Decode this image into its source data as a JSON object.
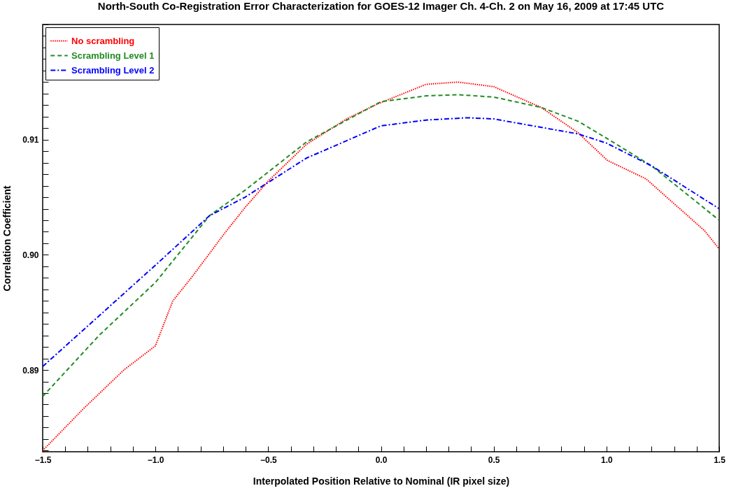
{
  "chart_data": {
    "type": "line",
    "title": "North-South Co-Registration Error Characterization for GOES-12 Imager Ch. 4-Ch. 2 on May 16, 2009 at 17:45 UTC",
    "xlabel": "Interpolated Position Relative to Nominal (IR pixel size)",
    "ylabel": "Correlation Coefficient",
    "series": [
      {
        "name": "No scrambling",
        "color": "#ff0000",
        "line_style": "dotted",
        "x": [
          -1.5,
          -1.316,
          -1.14,
          -1.0,
          -0.923,
          -0.841,
          -0.696,
          -0.603,
          -0.5,
          -0.33,
          -0.152,
          -0.015,
          0.2,
          0.341,
          0.5,
          0.71,
          0.874,
          1.004,
          1.175,
          1.435,
          1.5
        ],
        "values": [
          0.883,
          0.8867,
          0.89,
          0.8921,
          0.896,
          0.898,
          0.9018,
          0.9041,
          0.9064,
          0.9096,
          0.9118,
          0.9131,
          0.9148,
          0.915,
          0.9146,
          0.9128,
          0.9106,
          0.9082,
          0.9066,
          0.9021,
          0.9005
        ]
      },
      {
        "name": "Scrambling Level 1",
        "color": "#228b22",
        "line_style": "dashed",
        "x": [
          -1.5,
          -1.25,
          -1.0,
          -0.76,
          -0.603,
          -0.33,
          0.0,
          0.2,
          0.341,
          0.5,
          0.71,
          0.874,
          1.011,
          1.202,
          1.5
        ],
        "values": [
          0.8877,
          0.893,
          0.8976,
          0.9034,
          0.9056,
          0.9098,
          0.9133,
          0.9138,
          0.9139,
          0.9137,
          0.9128,
          0.9116,
          0.91,
          0.9077,
          0.903
        ]
      },
      {
        "name": "Scrambling Level 2",
        "color": "#0000ff",
        "line_style": "dashdot",
        "x": [
          -1.5,
          -1.25,
          -1.0,
          -0.76,
          -0.603,
          -0.33,
          0.0,
          0.2,
          0.382,
          0.5,
          0.874,
          1.0,
          1.202,
          1.5
        ],
        "values": [
          0.8903,
          0.8947,
          0.8991,
          0.9034,
          0.905,
          0.9084,
          0.9112,
          0.9117,
          0.9119,
          0.9118,
          0.9105,
          0.9097,
          0.9077,
          0.904
        ]
      }
    ],
    "xlim": [
      -1.5,
      1.5
    ],
    "xticks": [
      {
        "value": -1.5,
        "label": "−1.5"
      },
      {
        "value": -1.4,
        "label": null
      },
      {
        "value": -1.3,
        "label": null
      },
      {
        "value": -1.2,
        "label": null
      },
      {
        "value": -1.1,
        "label": null
      },
      {
        "value": -1.0,
        "label": "−1.0"
      },
      {
        "value": -0.9,
        "label": null
      },
      {
        "value": -0.8,
        "label": null
      },
      {
        "value": -0.7,
        "label": null
      },
      {
        "value": -0.6,
        "label": null
      },
      {
        "value": -0.5,
        "label": "−0.5"
      },
      {
        "value": -0.4,
        "label": null
      },
      {
        "value": -0.3,
        "label": null
      },
      {
        "value": -0.2,
        "label": null
      },
      {
        "value": -0.1,
        "label": null
      },
      {
        "value": 0,
        "label": "0.0"
      },
      {
        "value": 0.1,
        "label": null
      },
      {
        "value": 0.2,
        "label": null
      },
      {
        "value": 0.3,
        "label": null
      },
      {
        "value": 0.4,
        "label": null
      },
      0.5,
      {
        "value": 0.6,
        "label": null
      },
      {
        "value": 0.7,
        "label": null
      },
      {
        "value": 0.8,
        "label": null
      },
      {
        "value": 0.9,
        "label": null
      },
      {
        "value": 1.0,
        "label": "1.0"
      },
      {
        "value": 1.1,
        "label": null
      },
      {
        "value": 1.2,
        "label": null
      },
      {
        "value": 1.3,
        "label": null
      },
      {
        "value": 1.4,
        "label": null
      },
      1.5
    ],
    "ylim": [
      0.8829,
      0.92
    ],
    "yticks": [
      {
        "value": 0.883,
        "label": null
      },
      {
        "value": 0.884,
        "label": null
      },
      {
        "value": 0.885,
        "label": null
      },
      {
        "value": 0.886,
        "label": null
      },
      {
        "value": 0.887,
        "label": null
      },
      {
        "value": 0.888,
        "label": null
      },
      {
        "value": 0.889,
        "label": null
      },
      0.89,
      {
        "value": 0.891,
        "label": null
      },
      {
        "value": 0.892,
        "label": null
      },
      {
        "value": 0.893,
        "label": null
      },
      {
        "value": 0.894,
        "label": null
      },
      {
        "value": 0.895,
        "label": null
      },
      {
        "value": 0.896,
        "label": null
      },
      {
        "value": 0.897,
        "label": null
      },
      {
        "value": 0.898,
        "label": null
      },
      {
        "value": 0.899,
        "label": null
      },
      {
        "value": 0.9,
        "label": "0.90"
      },
      {
        "value": 0.901,
        "label": null
      },
      {
        "value": 0.902,
        "label": null
      },
      {
        "value": 0.903,
        "label": null
      },
      {
        "value": 0.904,
        "label": null
      },
      {
        "value": 0.905,
        "label": null
      },
      {
        "value": 0.906,
        "label": null
      },
      {
        "value": 0.907,
        "label": null
      },
      {
        "value": 0.908,
        "label": null
      },
      {
        "value": 0.909,
        "label": null
      },
      0.91,
      {
        "value": 0.911,
        "label": null
      },
      {
        "value": 0.912,
        "label": null
      },
      {
        "value": 0.913,
        "label": null
      },
      {
        "value": 0.914,
        "label": null
      },
      {
        "value": 0.915,
        "label": null
      },
      {
        "value": 0.916,
        "label": null
      },
      {
        "value": 0.917,
        "label": null
      },
      {
        "value": 0.918,
        "label": null
      },
      {
        "value": 0.919,
        "label": null
      },
      {
        "value": 0.92,
        "label": null
      }
    ],
    "grid": false,
    "legend": "top left",
    "marker": "none"
  }
}
